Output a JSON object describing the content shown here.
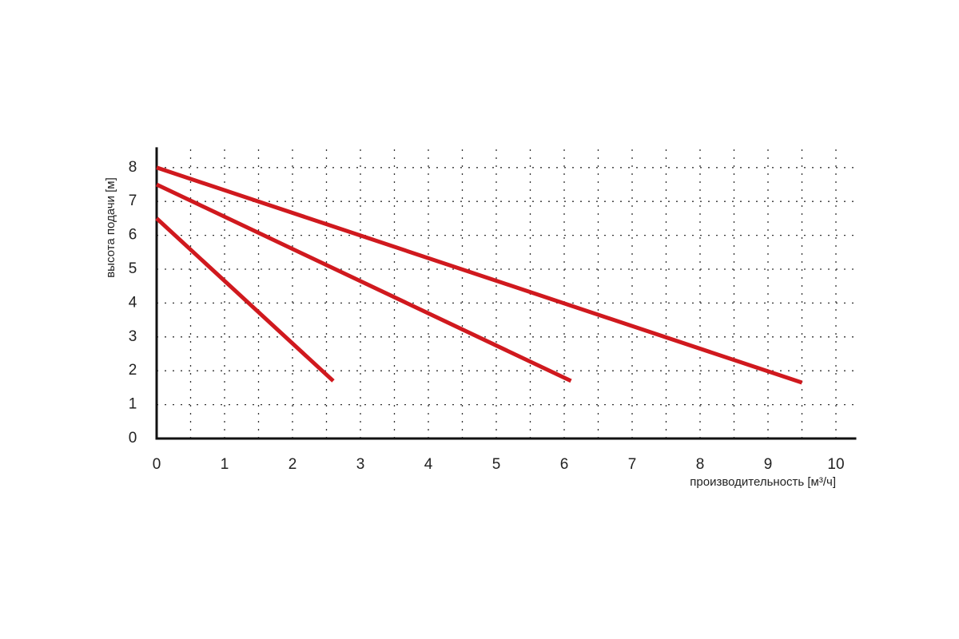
{
  "chart_data": {
    "type": "line",
    "x_label": "производительность [м³/ч]",
    "y_label": "высота подачи [м]",
    "xlim": [
      0,
      10.3
    ],
    "ylim": [
      0,
      8.6
    ],
    "xticks": [
      0,
      1,
      2,
      3,
      4,
      5,
      6,
      7,
      8,
      9,
      10
    ],
    "yticks": [
      0,
      1,
      2,
      3,
      4,
      5,
      6,
      7,
      8
    ],
    "grid": true,
    "series": [
      {
        "color": "#d0191e",
        "x": [
          0,
          2.6
        ],
        "values": [
          6.5,
          1.7
        ]
      },
      {
        "color": "#d0191e",
        "x": [
          0,
          6.1
        ],
        "values": [
          7.5,
          1.7
        ]
      },
      {
        "color": "#d0191e",
        "x": [
          0,
          9.5
        ],
        "values": [
          8,
          1.65
        ]
      }
    ]
  }
}
